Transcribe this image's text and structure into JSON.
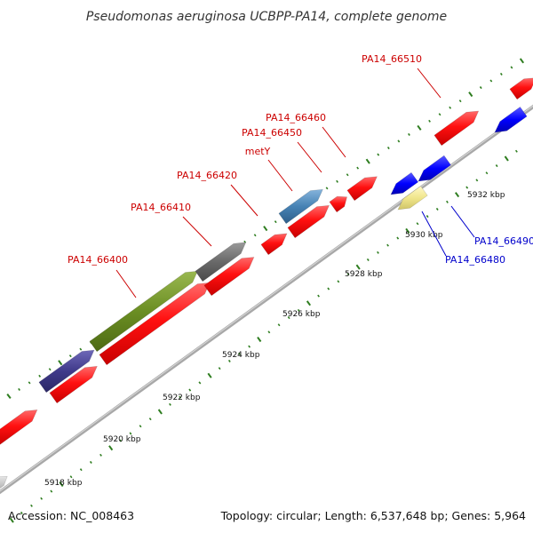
{
  "title": "Pseudomonas aeruginosa UCBPP-PA14, complete genome",
  "footer": {
    "accession": "Accession: NC_008463",
    "summary": "Topology: circular; Length: 6,537,648 bp; Genes: 5,964"
  },
  "colors": {
    "backbone": "#a8a8a8",
    "tick_major": "#2e7d1f",
    "tick_minor": "#2e7d1f",
    "forward_label": "#cc0000",
    "reverse_label": "#0000cc",
    "cds": "#ff0000",
    "highlight_purple": "#3f3a8a",
    "highlight_olive": "#6b8e23",
    "highlight_gray": "#696969",
    "highlight_steelblue": "#4682b4",
    "reverse_gene": "#0000ff",
    "pale_yellow": "#f0e68c"
  },
  "kbp_labels": [
    "5918 kbp",
    "5920 kbp",
    "5922 kbp",
    "5924 kbp",
    "5926 kbp",
    "5928 kbp",
    "5930 kbp",
    "5932 kbp"
  ],
  "gene_labels": [
    {
      "id": "pa14-66400",
      "text": "PA14_66400",
      "strand": "forward"
    },
    {
      "id": "pa14-66410",
      "text": "PA14_66410",
      "strand": "forward"
    },
    {
      "id": "pa14-66420",
      "text": "PA14_66420",
      "strand": "forward"
    },
    {
      "id": "mety",
      "text": "metY",
      "strand": "forward"
    },
    {
      "id": "pa14-66450",
      "text": "PA14_66450",
      "strand": "forward"
    },
    {
      "id": "pa14-66460",
      "text": "PA14_66460",
      "strand": "forward"
    },
    {
      "id": "pa14-66510",
      "text": "PA14_66510",
      "strand": "forward"
    },
    {
      "id": "pa14-66480",
      "text": "PA14_66480",
      "strand": "reverse"
    },
    {
      "id": "pa14-66490",
      "text": "PA14_66490",
      "strand": "reverse"
    }
  ]
}
